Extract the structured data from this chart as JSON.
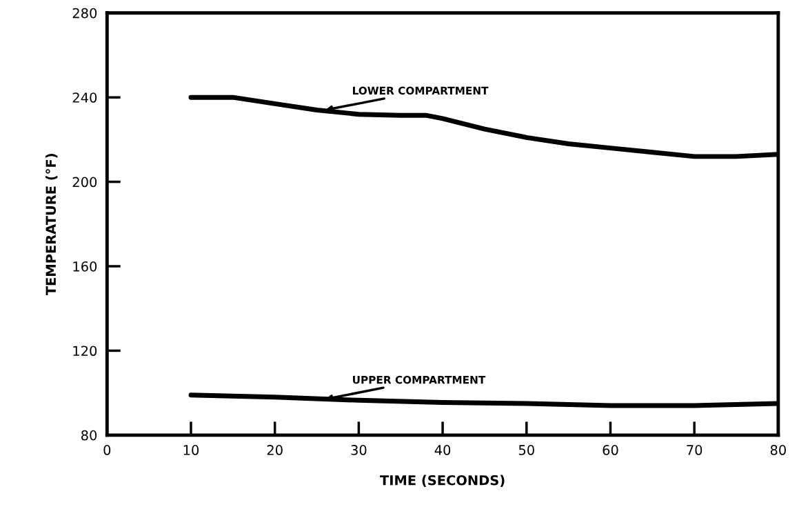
{
  "chart_data": {
    "type": "line",
    "xlabel": "TIME (SECONDS)",
    "ylabel": "TEMPERATURE (°F)",
    "xlim": [
      0,
      80
    ],
    "ylim": [
      80,
      280
    ],
    "xticks": [
      0,
      10,
      20,
      30,
      40,
      50,
      60,
      70,
      80
    ],
    "yticks": [
      80,
      120,
      160,
      200,
      240,
      280
    ],
    "grid": false,
    "marker": "none",
    "line_style": "solid",
    "series": [
      {
        "color": "#000000",
        "x": [
          10,
          15,
          20,
          25,
          30,
          35,
          38,
          40,
          45,
          50,
          55,
          60,
          65,
          70,
          75,
          80
        ],
        "values": [
          240,
          240,
          237,
          234,
          232,
          231.5,
          231.5,
          230,
          225,
          221,
          218,
          216,
          214,
          212,
          212,
          213
        ]
      },
      {
        "color": "#000000",
        "x": [
          10,
          20,
          30,
          40,
          50,
          60,
          70,
          80
        ],
        "values": [
          99,
          98,
          96.5,
          95.5,
          95,
          94,
          94,
          95
        ]
      }
    ],
    "annotations": [
      {
        "text": "LOWER COMPARTMENT",
        "x": 26,
        "y": 234
      },
      {
        "text": "UPPER COMPARTMENT",
        "x": 26,
        "y": 97
      }
    ]
  }
}
